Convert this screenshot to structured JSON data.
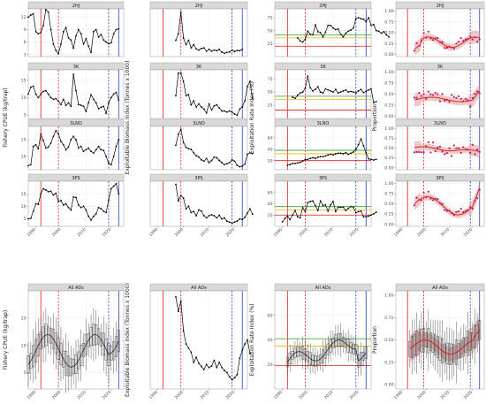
{
  "chart_data": {
    "type": "faceted-multipanel",
    "facet_rows": [
      "2HJ",
      "3K",
      "3LNO",
      "3PS",
      "All ADs"
    ],
    "columns": [
      {
        "key": "cpue",
        "ylabel": "Fishery CPUE (kg/trap)",
        "ylabel_alldas": "Fishery CPUE (kg/trap)"
      },
      {
        "key": "biomass",
        "ylabel": "Exploitable Biomass Index (Tonnes x 1000)",
        "ylabel_alldas": "Exploitable Biomass Index (Tonnes x 1000)"
      },
      {
        "key": "exploitation",
        "ylabel": "Exploitation Rate Index (%)",
        "ylabel_alldas": "Exploitation Rate Index (%)"
      },
      {
        "key": "proportion",
        "ylabel": "Proportion",
        "ylabel_alldas": "Proportion"
      }
    ],
    "x_ticks": [
      "1990",
      "2000",
      "2010",
      "2020"
    ],
    "x_range": [
      1987,
      2025
    ],
    "vlines": [
      {
        "year": 1992,
        "color": "#e41a1c",
        "style": "solid"
      },
      {
        "year": 1999,
        "color": "#e41a1c",
        "style": "dashed"
      },
      {
        "year": 2019,
        "color": "#1f3fbf",
        "style": "dashed"
      },
      {
        "year": 2023,
        "color": "#1f3fbf",
        "style": "solid"
      }
    ],
    "hlines_exploitation": [
      {
        "color": "#e41a1c"
      },
      {
        "color": "#e6b800"
      },
      {
        "color": "#33a02c"
      }
    ],
    "years": [
      1987,
      1988,
      1989,
      1990,
      1991,
      1992,
      1993,
      1994,
      1995,
      1996,
      1997,
      1998,
      1999,
      2000,
      2001,
      2002,
      2003,
      2004,
      2005,
      2006,
      2007,
      2008,
      2009,
      2010,
      2011,
      2012,
      2013,
      2014,
      2015,
      2016,
      2017,
      2018,
      2019,
      2020,
      2021,
      2022,
      2023
    ],
    "panels": {
      "2HJ": {
        "cpue": {
          "y_ticks": [
            3,
            6,
            9,
            12
          ],
          "ylim": [
            2.5,
            14
          ],
          "values": [
            12,
            12.5,
            12.8,
            8.5,
            8,
            8.3,
            10,
            13.8,
            13.2,
            9,
            5.5,
            4,
            3.2,
            5.5,
            8.5,
            9.5,
            7,
            6.5,
            4.5,
            7.5,
            9,
            8,
            5.5,
            6.8,
            5,
            3.5,
            8.5,
            9,
            7.2,
            7.8,
            6.5,
            6,
            5.6,
            5.8,
            8,
            9,
            9.2
          ]
        },
        "biomass": {
          "start": 1997,
          "values": [
            7,
            10,
            20,
            8,
            5,
            7,
            3.5,
            5,
            3,
            2.5,
            3.2,
            3.5,
            2,
            2.8,
            2,
            2.5,
            2.2,
            2.8,
            1.5,
            1,
            1.4,
            1.6,
            2.5,
            1.8,
            2.3,
            2.2,
            2.8
          ]
        },
        "exploitation": {
          "y_ticks": [
            "25",
            "50",
            "75"
          ],
          "ylim": [
            0,
            92
          ],
          "hlines": [
            20,
            36,
            42
          ],
          "start": 1996,
          "values": [
            36,
            30,
            28,
            33,
            49,
            43,
            42,
            61,
            48,
            46,
            38,
            47,
            60,
            60,
            55,
            52,
            53,
            43,
            38,
            45,
            49,
            51,
            55,
            73,
            75,
            73,
            72,
            67,
            75,
            60,
            62,
            50,
            49,
            45,
            48,
            42,
            38
          ]
        },
        "proportion": {
          "y_ticks": [
            "0.00",
            "0.25",
            "0.50",
            "0.75",
            "1.00"
          ],
          "ylim": [
            -0.05,
            1.05
          ],
          "start": 1995
        }
      },
      "3K": {
        "cpue": {
          "y_ticks": [
            5,
            10,
            15
          ],
          "ylim": [
            4,
            18
          ],
          "values": [
            11,
            13,
            13.3,
            11,
            10,
            11,
            11.8,
            12,
            11,
            10,
            9.5,
            9.7,
            9,
            8,
            9.5,
            7.8,
            8.5,
            7.5,
            16.7,
            12,
            8,
            7.8,
            7.5,
            6,
            8.5,
            10.8,
            9.5,
            8.5,
            6.8,
            7.2,
            7.5,
            5.5,
            8.5,
            10,
            11,
            11.5,
            9.3
          ]
        },
        "biomass": {
          "start": 1997,
          "values": [
            28,
            50,
            50,
            42,
            28,
            29,
            19,
            23,
            17,
            20,
            17,
            15,
            11,
            20,
            14,
            18,
            19,
            16,
            13,
            13,
            12,
            13,
            12,
            10,
            9,
            15,
            17,
            23,
            37,
            42,
            25
          ]
        },
        "exploitation": {
          "y_ticks": [
            "25",
            "50",
            "75"
          ],
          "ylim": [
            0,
            92
          ],
          "hlines": [
            16,
            36,
            42
          ],
          "start": 1994,
          "values": [
            40,
            38,
            44,
            48,
            50,
            57,
            80,
            58,
            52,
            55,
            60,
            50,
            48,
            56,
            54,
            52,
            50,
            55,
            48,
            50,
            52,
            54,
            50,
            51,
            50,
            48,
            52,
            55,
            49,
            51,
            54,
            56,
            30,
            32
          ]
        },
        "proportion": {
          "y_ticks": [
            "0.00",
            "0.25",
            "0.50",
            "0.75",
            "1.00"
          ],
          "ylim": [
            -0.05,
            1.05
          ],
          "start": 1995
        }
      },
      "3LNO": {
        "cpue": {
          "y_ticks": [
            10,
            15
          ],
          "ylim": [
            6,
            19
          ],
          "values": [
            7.2,
            7.5,
            13,
            13.5,
            12.3,
            16.7,
            14.8,
            12.5,
            12.8,
            14,
            16,
            17.7,
            16.8,
            14.5,
            13.5,
            12,
            12.8,
            15,
            16,
            15,
            12.5,
            13,
            11.5,
            12,
            12.5,
            11.5,
            11,
            12,
            13,
            12,
            11.8,
            10,
            8,
            7.5,
            10,
            13,
            15
          ]
        },
        "biomass": {
          "start": 1997,
          "values": [
            185,
            265,
            300,
            205,
            170,
            160,
            155,
            130,
            110,
            100,
            80,
            70,
            90,
            60,
            75,
            100,
            95,
            75,
            60,
            45,
            52,
            60,
            80,
            70,
            40,
            30,
            35,
            50,
            120,
            130,
            125
          ]
        },
        "exploitation": {
          "y_ticks": [
            "20",
            "40",
            "60"
          ],
          "ylim": [
            4,
            80
          ],
          "hlines": [
            20,
            32,
            38
          ],
          "start": 1992,
          "values": [
            12,
            13,
            15,
            15,
            16,
            17,
            19,
            22,
            22,
            24,
            25,
            24,
            26,
            27,
            27,
            28,
            30,
            31,
            30,
            32,
            33,
            33,
            32,
            34,
            31,
            33,
            35,
            40,
            48,
            58,
            46,
            34,
            23,
            22,
            21,
            22
          ]
        },
        "proportion": {
          "y_ticks": [
            "0.00",
            "0.25",
            "0.50",
            "0.75",
            "1.00"
          ],
          "ylim": [
            -0.05,
            1.05
          ],
          "start": 1995
        }
      },
      "3PS": {
        "cpue": {
          "y_ticks": [
            5,
            10,
            15
          ],
          "ylim": [
            2,
            20
          ],
          "values": [
            5,
            5.2,
            8,
            11,
            10.8,
            15,
            17,
            16.5,
            15.8,
            16,
            14.5,
            15.2,
            12,
            12.3,
            10.5,
            11,
            9.5,
            8.5,
            13.7,
            13.5,
            10.5,
            9.5,
            10,
            8.5,
            6,
            4.5,
            6,
            7,
            9.5,
            9,
            8,
            7.5,
            12.5,
            17,
            18,
            19,
            15
          ]
        },
        "biomass": {
          "start": 1997,
          "values": [
            81,
            50,
            60,
            55,
            35,
            40,
            28,
            30,
            22,
            33,
            31,
            22,
            18,
            22,
            24,
            22,
            18,
            23,
            16,
            18,
            12,
            10,
            8,
            10,
            12,
            16,
            15,
            19,
            27,
            35,
            25
          ]
        },
        "exploitation": {
          "y_ticks": [
            "20",
            "40",
            "60"
          ],
          "ylim": [
            0,
            80
          ],
          "hlines": [
            20,
            29,
            35
          ],
          "start": 1990,
          "values": [
            8,
            14,
            18,
            12,
            20,
            28,
            17,
            15,
            33,
            26,
            42,
            44,
            45,
            37,
            28,
            45,
            37,
            38,
            27,
            38,
            44,
            26,
            34,
            34,
            34,
            28,
            32,
            35,
            34,
            24,
            26,
            27,
            17,
            17,
            18,
            20,
            22,
            25
          ]
        },
        "proportion": {
          "y_ticks": [
            "0.00",
            "0.25",
            "0.50",
            "0.75",
            "1.00"
          ],
          "ylim": [
            -0.05,
            1.05
          ],
          "start": 1995
        }
      },
      "All ADs": {
        "cpue": {
          "y_ticks": [
            5,
            10,
            15
          ],
          "ylim": [
            2,
            20
          ]
        },
        "biomass": {
          "y_ticks": [],
          "ylim": [
            0,
            480
          ],
          "start": 1997,
          "values": [
            450,
            380,
            430,
            285,
            220,
            200,
            180,
            130,
            155,
            125,
            110,
            95,
            120,
            105,
            112,
            140,
            105,
            130,
            105,
            90,
            80,
            60,
            45,
            55,
            70,
            150,
            190,
            220,
            240,
            175
          ]
        },
        "exploitation": {
          "y_ticks": [
            "20",
            "40",
            "60"
          ],
          "ylim": [
            0,
            80
          ],
          "hlines": [
            19,
            35,
            41
          ]
        },
        "proportion": {
          "y_ticks": [
            "0.00",
            "0.25",
            "0.50",
            "0.75",
            "1.00"
          ],
          "ylim": [
            -0.05,
            1.05
          ]
        }
      }
    }
  }
}
